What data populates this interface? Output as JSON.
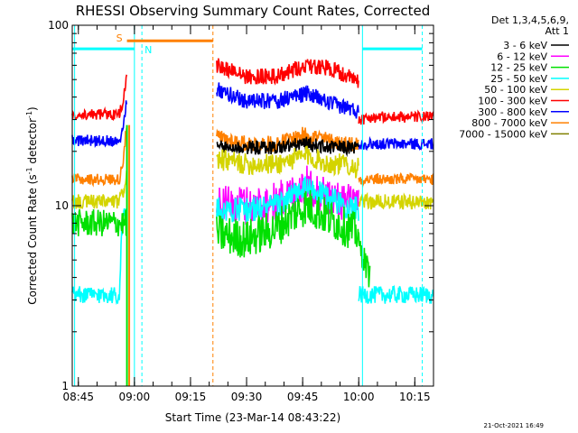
{
  "chart_data": {
    "type": "line",
    "title": "RHESSI Observing Summary Count Rates, Corrected",
    "xlabel": "Start Time (23-Mar-14 08:43:22)",
    "ylabel_main": "Corrected Count Rate (s",
    "ylabel_sup1": "-1",
    "ylabel_mid": " detector",
    "ylabel_sup2": "-1",
    "ylabel_end": ")",
    "yscale": "log",
    "ylim": [
      1,
      100
    ],
    "xlim": [
      "08:43:22",
      "10:20:00"
    ],
    "x_ticks": [
      "08:45",
      "09:00",
      "09:15",
      "09:30",
      "09:45",
      "10:00",
      "10:15"
    ],
    "y_ticks": [
      "1",
      "10",
      "100"
    ],
    "legend": {
      "placement": "right-outside",
      "header1": "Det 1,3,4,5,6,9,",
      "header2": "Att 1",
      "entries": [
        {
          "label": "3 - 6 keV",
          "color": "#000000"
        },
        {
          "label": "6 - 12 keV",
          "color": "#ff00ff"
        },
        {
          "label": "12 - 25 keV",
          "color": "#00e000"
        },
        {
          "label": "25 - 50 keV",
          "color": "#00ffff"
        },
        {
          "label": "50 - 100 keV",
          "color": "#d4d400"
        },
        {
          "label": "100 - 300 keV",
          "color": "#ff0000"
        },
        {
          "label": "300 - 800 keV",
          "color": "#0000ff"
        },
        {
          "label": "800 - 7000 keV",
          "color": "#ff8000"
        },
        {
          "label": "7000 - 15000 keV",
          "color": "#808000"
        }
      ]
    },
    "gaps": [
      [
        "09:02",
        "09:22"
      ]
    ],
    "series": [
      {
        "name": "100 - 300 keV",
        "color": "#ff0000",
        "pre": {
          "x": [
            "08:43:22",
            "08:56",
            "08:57",
            "08:58"
          ],
          "y": [
            32,
            32,
            38,
            52
          ]
        },
        "obs": {
          "x": [
            "09:22",
            "09:30",
            "09:38",
            "09:46",
            "09:52",
            "09:57",
            "10:00"
          ],
          "y": [
            60,
            52,
            52,
            60,
            58,
            52,
            48
          ]
        },
        "post": {
          "x": [
            "10:00",
            "10:04",
            "10:20"
          ],
          "y": [
            30,
            31,
            31
          ]
        },
        "noise": 0.09
      },
      {
        "name": "300 - 800 keV",
        "color": "#0000ff",
        "pre": {
          "x": [
            "08:43:22",
            "08:56",
            "08:57",
            "08:58"
          ],
          "y": [
            23,
            23,
            27,
            40
          ]
        },
        "obs": {
          "x": [
            "09:22",
            "09:30",
            "09:38",
            "09:46",
            "09:52",
            "09:57",
            "10:00"
          ],
          "y": [
            44,
            38,
            38,
            42,
            37,
            35,
            33
          ]
        },
        "post": {
          "x": [
            "10:00",
            "10:04",
            "10:20"
          ],
          "y": [
            22,
            22,
            22
          ]
        },
        "noise": 0.09
      },
      {
        "name": "800 - 7000 keV",
        "color": "#ff8000",
        "pre": {
          "x": [
            "08:43:22",
            "08:56",
            "08:57",
            "08:58"
          ],
          "y": [
            14,
            14,
            18,
            28
          ]
        },
        "obs": {
          "x": [
            "09:22",
            "09:30",
            "09:38",
            "09:46",
            "09:52",
            "09:57",
            "10:00"
          ],
          "y": [
            24,
            22,
            22,
            25,
            23,
            22,
            22
          ]
        },
        "post": {
          "x": [
            "10:00",
            "10:04",
            "10:20"
          ],
          "y": [
            14,
            14,
            14
          ]
        },
        "noise": 0.09
      },
      {
        "name": "3 - 6 keV",
        "color": "#000000",
        "pre": {
          "x": [],
          "y": []
        },
        "obs": {
          "x": [
            "09:22",
            "09:30",
            "09:38",
            "09:46",
            "09:52",
            "09:57",
            "10:00"
          ],
          "y": [
            21,
            21,
            21,
            22,
            21,
            21,
            21
          ]
        },
        "post": {
          "x": [],
          "y": []
        },
        "noise": 0.08
      },
      {
        "name": "50 - 100 keV",
        "color": "#d4d400",
        "pre": {
          "x": [
            "08:43:22",
            "08:56",
            "08:57",
            "08:58"
          ],
          "y": [
            10.5,
            10.5,
            12,
            15
          ]
        },
        "obs": {
          "x": [
            "09:22",
            "09:30",
            "09:38",
            "09:46",
            "09:52",
            "09:57",
            "10:00"
          ],
          "y": [
            18,
            17,
            17,
            19,
            17,
            17,
            16
          ]
        },
        "post": {
          "x": [
            "10:00",
            "10:04",
            "10:20"
          ],
          "y": [
            10.5,
            10.5,
            10.5
          ]
        },
        "noise": 0.12
      },
      {
        "name": "6 - 12 keV",
        "color": "#ff00ff",
        "pre": {
          "x": [],
          "y": []
        },
        "obs": {
          "x": [
            "09:22",
            "09:30",
            "09:38",
            "09:46",
            "09:52",
            "09:57",
            "10:00"
          ],
          "y": [
            10,
            10,
            10.5,
            13,
            11,
            10.5,
            10
          ]
        },
        "post": {
          "x": [],
          "y": []
        },
        "noise": 0.22
      },
      {
        "name": "25 - 50 keV",
        "color": "#00ffff",
        "pre": {
          "x": [
            "08:43:22",
            "08:56",
            "08:57",
            "08:58"
          ],
          "y": [
            3.2,
            3.2,
            9,
            9
          ]
        },
        "obs": {
          "x": [
            "09:22",
            "09:30",
            "09:38",
            "09:46",
            "09:52",
            "09:57",
            "10:00"
          ],
          "y": [
            9.5,
            9.5,
            10,
            12.5,
            11,
            10,
            9.5
          ]
        },
        "post": {
          "x": [
            "10:00",
            "10:04",
            "10:20"
          ],
          "y": [
            3.2,
            3.2,
            3.2
          ]
        },
        "noise": 0.14
      },
      {
        "name": "12 - 25 keV",
        "color": "#00e000",
        "pre": {
          "x": [
            "08:43:22",
            "08:56",
            "08:57",
            "08:58"
          ],
          "y": [
            8,
            8,
            8,
            8
          ]
        },
        "obs": {
          "x": [
            "09:22",
            "09:30",
            "09:38",
            "09:46",
            "09:52",
            "09:57",
            "10:00"
          ],
          "y": [
            7,
            6.5,
            7.5,
            10,
            8.5,
            7.5,
            7
          ]
        },
        "post": {
          "x": [
            "10:00",
            "10:03"
          ],
          "y": [
            6,
            4
          ]
        },
        "noise": 0.22
      }
    ],
    "annotations": {
      "saa_label": "S",
      "night_label": "N",
      "saa_bar": {
        "x": [
          "08:58",
          "09:21"
        ],
        "y": 82,
        "color": "#ff8000"
      },
      "night_bars": [
        {
          "x": [
            "08:43:22",
            "09:00"
          ],
          "y": 74,
          "color": "#00ffff"
        },
        {
          "x": [
            "10:01",
            "10:17"
          ],
          "y": 74,
          "color": "#00ffff"
        }
      ],
      "vlines": [
        {
          "x": "08:44",
          "color": "#00ffff",
          "style": "solid"
        },
        {
          "x": "09:00",
          "color": "#00ffff",
          "style": "solid"
        },
        {
          "x": "09:02",
          "color": "#00ffff",
          "style": "dashed"
        },
        {
          "x": "09:21",
          "color": "#ff8000",
          "style": "dashed"
        },
        {
          "x": "10:01",
          "color": "#00ffff",
          "style": "solid"
        },
        {
          "x": "10:17",
          "color": "#00ffff",
          "style": "dashed"
        }
      ],
      "stripes": [
        {
          "x": "08:58",
          "y": [
            1,
            28
          ],
          "color": "#00e000"
        },
        {
          "x": "08:58.6",
          "y": [
            1,
            28
          ],
          "color": "#ff8000"
        }
      ]
    },
    "footer_timestamp": "21-Oct-2021 16:49"
  }
}
